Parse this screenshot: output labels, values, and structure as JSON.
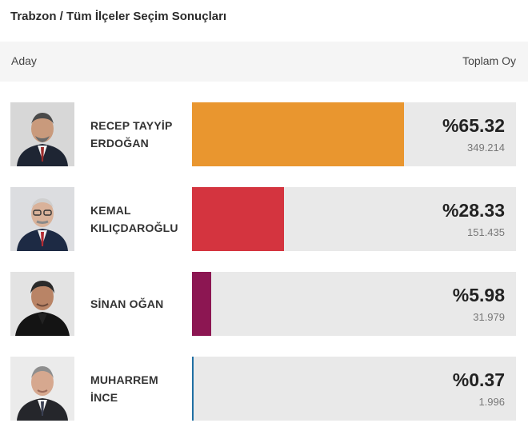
{
  "title": "Trabzon / Tüm İlçeler Seçim Sonuçları",
  "header": {
    "left": "Aday",
    "right": "Toplam Oy"
  },
  "candidates": [
    {
      "name_line1": "RECEP TAYYİP",
      "name_line2": "ERDOĞAN",
      "percent": "%65.32",
      "share": 0.6532,
      "votes": "349.214",
      "color": "#e9962f"
    },
    {
      "name_line1": "KEMAL",
      "name_line2": "KILIÇDAROĞLU",
      "percent": "%28.33",
      "share": 0.2833,
      "votes": "151.435",
      "color": "#d4343f"
    },
    {
      "name_line1": "SİNAN OĞAN",
      "name_line2": "",
      "percent": "%5.98",
      "share": 0.0598,
      "votes": "31.979",
      "color": "#8c1652"
    },
    {
      "name_line1": "MUHARREM",
      "name_line2": "İNCE",
      "percent": "%0.37",
      "share": 0.0037,
      "votes": "1.996",
      "color": "#1f6fa3"
    }
  ]
}
